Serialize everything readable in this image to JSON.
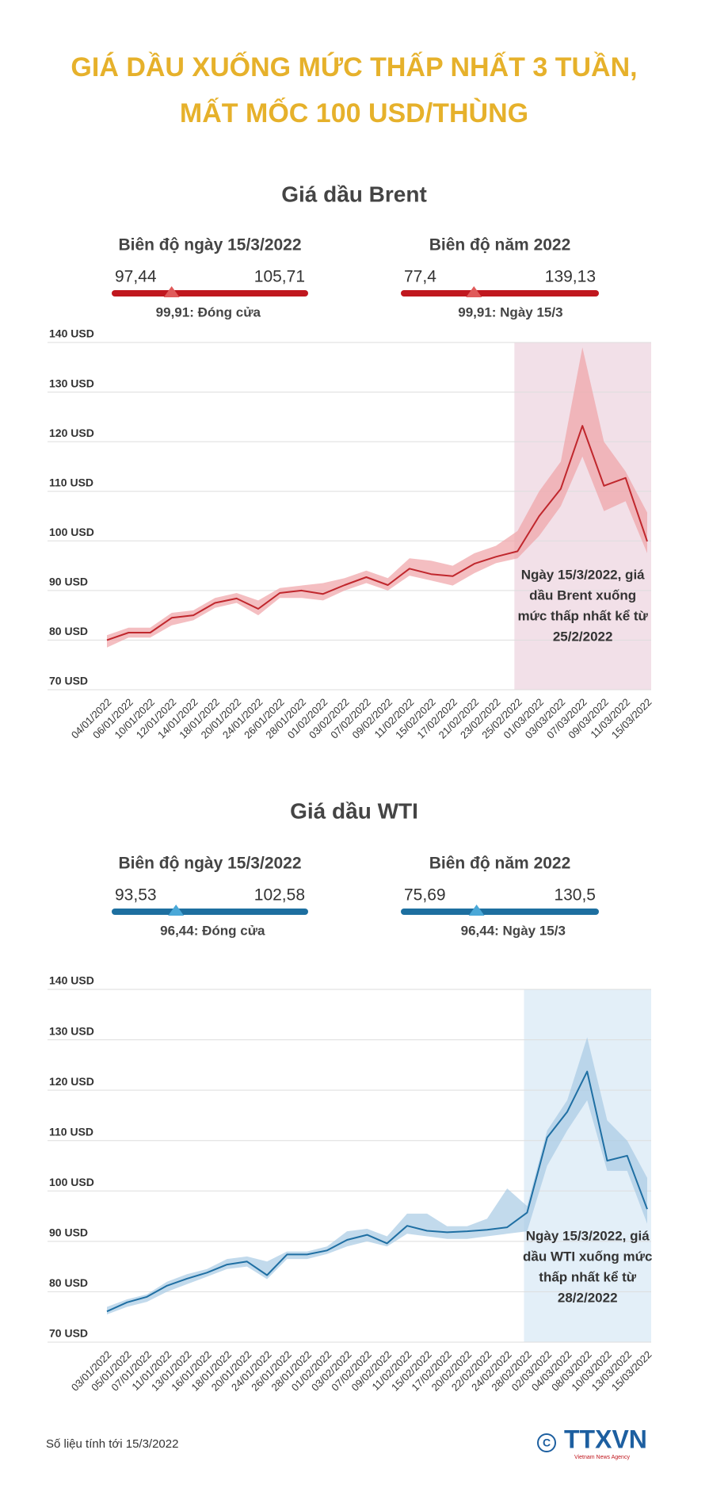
{
  "header": {
    "lines": [
      "GIÁ DẦU XUỐNG MỨC THẤP NHẤT 3 TUẦN,",
      "MẤT MỐC 100 USD/THÙNG"
    ]
  },
  "chart_data": [
    {
      "type": "line",
      "title": "Giá dầu Brent",
      "color": "#c0272d",
      "band_color": "#f0a3a6",
      "highlight_color": "#f2e0e8",
      "bar_color": "#c0171e",
      "marker_color": "#e05a5a",
      "ranges": [
        {
          "title": "Biên độ ngày 15/3/2022",
          "low": 97.44,
          "low_label": "97,44",
          "high": 105.71,
          "high_label": "105,71",
          "mark": 99.91,
          "mark_label": "99,91: Đóng cửa"
        },
        {
          "title": "Biên độ năm 2022",
          "low": 77.4,
          "low_label": "77,4",
          "high": 139.13,
          "high_label": "139,13",
          "mark": 99.91,
          "mark_label": "99,91: Ngày 15/3"
        }
      ],
      "categories": [
        "04/01/2022",
        "06/01/2022",
        "10/01/2022",
        "12/01/2022",
        "14/01/2022",
        "18/01/2022",
        "20/01/2022",
        "24/01/2022",
        "26/01/2022",
        "28/01/2022",
        "01/02/2022",
        "03/02/2022",
        "07/02/2022",
        "09/02/2022",
        "11/02/2022",
        "15/02/2022",
        "17/02/2022",
        "21/02/2022",
        "23/02/2022",
        "25/02/2022",
        "01/03/2022",
        "03/03/2022",
        "07/03/2022",
        "09/03/2022",
        "11/03/2022",
        "15/03/2022"
      ],
      "values": [
        80,
        81.5,
        81.5,
        84.5,
        85,
        87.5,
        88.4,
        86.3,
        89.5,
        90,
        89.3,
        91.1,
        92.7,
        91.1,
        94.4,
        93.3,
        92.9,
        95.4,
        96.8,
        97.9,
        105,
        110.5,
        123.2,
        111.1,
        112.7,
        99.9
      ],
      "band_low": [
        78.5,
        80.5,
        80.5,
        83,
        84,
        86.5,
        87.5,
        85,
        88.5,
        88.5,
        88,
        90,
        91.5,
        90,
        93,
        92,
        91,
        93.5,
        95.5,
        96.5,
        101,
        107,
        117,
        106,
        108,
        97.5
      ],
      "band_high": [
        81,
        82.5,
        82.5,
        85.5,
        86,
        88.5,
        89.5,
        88,
        90.5,
        91,
        91.5,
        92.5,
        94,
        92.5,
        96.5,
        96,
        95,
        97.5,
        99,
        102,
        110,
        116,
        139,
        120,
        114,
        105.7
      ],
      "ylim": [
        70,
        140
      ],
      "yticks": [
        {
          "value": 70,
          "label": "70 USD"
        },
        {
          "value": 80,
          "label": "80 USD"
        },
        {
          "value": 90,
          "label": "90 USD"
        },
        {
          "value": 100,
          "label": "100 USD"
        },
        {
          "value": 110,
          "label": "110 USD"
        },
        {
          "value": 120,
          "label": "120 USD"
        },
        {
          "value": 130,
          "label": "130 USD"
        },
        {
          "value": 140,
          "label": "140 USD"
        }
      ],
      "grid": true,
      "highlight_start": 19,
      "annotation": [
        "Ngày 15/3/2022, giá",
        "dầu Brent xuống",
        "mức thấp nhất kể từ",
        "25/2/2022"
      ]
    },
    {
      "type": "line",
      "title": "Giá dầu WTI",
      "color": "#1f6fa3",
      "band_color": "#a8cae4",
      "highlight_color": "#e3eff8",
      "bar_color": "#1d6fa0",
      "marker_color": "#4aa8d8",
      "ranges": [
        {
          "title": "Biên độ ngày 15/3/2022",
          "low": 93.53,
          "low_label": "93,53",
          "high": 102.58,
          "high_label": "102,58",
          "mark": 96.44,
          "mark_label": "96,44: Đóng cửa"
        },
        {
          "title": "Biên độ năm 2022",
          "low": 75.69,
          "low_label": "75,69",
          "high": 130.5,
          "high_label": "130,5",
          "mark": 96.44,
          "mark_label": "96,44: Ngày 15/3"
        }
      ],
      "categories": [
        "03/01/2022",
        "05/01/2022",
        "07/01/2022",
        "11/01/2022",
        "13/01/2022",
        "16/01/2022",
        "18/01/2022",
        "20/01/2022",
        "24/01/2022",
        "26/01/2022",
        "28/01/2022",
        "01/02/2022",
        "03/02/2022",
        "07/02/2022",
        "09/02/2022",
        "11/02/2022",
        "15/02/2022",
        "17/02/2022",
        "20/02/2022",
        "22/02/2022",
        "24/02/2022",
        "28/02/2022",
        "02/03/2022",
        "04/03/2022",
        "08/03/2022",
        "10/03/2022",
        "13/03/2022",
        "15/03/2022"
      ],
      "values": [
        76.1,
        77.9,
        79,
        81.2,
        82.6,
        83.8,
        85.4,
        86,
        83.3,
        87.4,
        87.4,
        88.2,
        90.3,
        91.3,
        89.6,
        93.1,
        92.1,
        91.8,
        92,
        92.3,
        92.8,
        95.7,
        110.6,
        115.7,
        123.7,
        106,
        107,
        96.4
      ],
      "band_low": [
        75.5,
        77,
        78,
        80,
        81.5,
        83,
        84.5,
        85,
        82.5,
        86.5,
        86.5,
        87.5,
        89,
        90,
        89,
        91.5,
        91,
        90.5,
        90.5,
        91,
        91.5,
        92,
        105,
        112,
        118,
        104,
        104,
        93.5
      ],
      "band_high": [
        77,
        78.5,
        79.5,
        82,
        83.5,
        84.5,
        86.5,
        87,
        86,
        88,
        88,
        89,
        92,
        92.5,
        91,
        95.5,
        95.5,
        93,
        93,
        94.5,
        100.5,
        97,
        112,
        118,
        130.5,
        114,
        110,
        102.6
      ],
      "ylim": [
        70,
        140
      ],
      "yticks": [
        {
          "value": 70,
          "label": "70 USD"
        },
        {
          "value": 80,
          "label": "80 USD"
        },
        {
          "value": 90,
          "label": "90 USD"
        },
        {
          "value": 100,
          "label": "100 USD"
        },
        {
          "value": 110,
          "label": "110 USD"
        },
        {
          "value": 120,
          "label": "120 USD"
        },
        {
          "value": 130,
          "label": "130 USD"
        },
        {
          "value": 140,
          "label": "140 USD"
        }
      ],
      "grid": true,
      "highlight_start": 21,
      "annotation": [
        "Ngày 15/3/2022, giá",
        "dầu WTI xuống mức",
        "thấp nhất kể từ",
        "28/2/2022"
      ]
    }
  ],
  "footer": {
    "source": "Số liệu tính tới 15/3/2022",
    "logo": "TTXVN",
    "logo_sub": "Vietnam News Agency"
  }
}
